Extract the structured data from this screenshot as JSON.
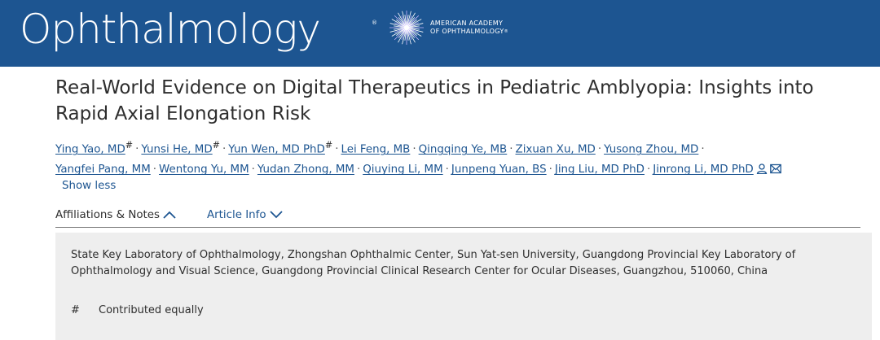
{
  "header": {
    "journal_title": "Ophthalmology",
    "registered_mark": "®",
    "org_line1": "AMERICAN ACADEMY",
    "org_line2": "OF OPHTHALMOLOGY",
    "org_mark": "®",
    "brand_color": "#1d5591"
  },
  "article": {
    "title": "Real-World Evidence on Digital Therapeutics in Pediatric Amblyopia: Insights into Rapid Axial Elongation Risk"
  },
  "authors": [
    {
      "name": "Ying Yao, MD",
      "mark": "#"
    },
    {
      "name": "Yunsi He, MD",
      "mark": "#"
    },
    {
      "name": "Yun Wen, MD PhD",
      "mark": "#"
    },
    {
      "name": "Lei Feng, MB"
    },
    {
      "name": "Qingqing Ye, MB"
    },
    {
      "name": "Zixuan Xu, MD"
    },
    {
      "name": "Yusong Zhou, MD"
    },
    {
      "name": "Yangfei Pang, MM"
    },
    {
      "name": "Wentong Yu, MM"
    },
    {
      "name": "Yudan Zhong, MM"
    },
    {
      "name": "Qiuying Li, MM"
    },
    {
      "name": "Junpeng Yuan, BS"
    },
    {
      "name": "Jing Liu, MD PhD"
    },
    {
      "name": "Jinrong Li, MD PhD",
      "icons": [
        "person-icon",
        "email-icon"
      ]
    }
  ],
  "separator": "·",
  "show_less": "Show less",
  "tabs": {
    "affiliations": "Affiliations & Notes",
    "article_info": "Article Info"
  },
  "affiliations": {
    "text": "State Key Laboratory of Ophthalmology, Zhongshan Ophthalmic Center, Sun Yat-sen University, Guangdong Provincial Key Laboratory of Ophthalmology and Visual Science, Guangdong Provincial Clinical Research Center for Ocular Diseases, Guangzhou, 510060, China",
    "note_symbol": "#",
    "note_text": "Contributed equally"
  }
}
